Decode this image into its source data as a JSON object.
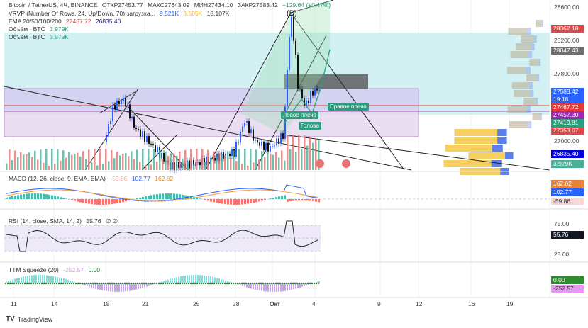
{
  "header": {
    "symbol": "Bitcoin / TetherUS, 4Ч, BINANCE",
    "open": "ОТКР27453.77",
    "high": "МАКС27643.09",
    "low": "МИН27434.10",
    "close": "ЗАКР27583.42",
    "change": "+129.64 (+0.47%)"
  },
  "vrvp": {
    "label": "VRVP (Number Of Rows, 24, Up/Down, 70) загрузка...",
    "up": "9.521K",
    "down": "8.585K",
    "total": "18.107K"
  },
  "ema": {
    "label": "EMA 20/50/100/200",
    "v1": "27467.72",
    "v2": "26835.40"
  },
  "volume": [
    {
      "label": "Объём · BTC",
      "value": "3.979K"
    },
    {
      "label": "Объём · BTC",
      "value": "3.979K"
    }
  ],
  "price_axis": [
    "28600.00",
    "28200.00",
    "27800.00",
    "27000.00"
  ],
  "price_tags": [
    {
      "text": "28362.18",
      "color": "#e04848"
    },
    {
      "text": "28047.43",
      "color": "#707070"
    },
    {
      "text": "27583.42",
      "color": "#2962ff"
    },
    {
      "text": "19:18",
      "color": "#2962ff"
    },
    {
      "text": "27467.72",
      "color": "#e53935"
    },
    {
      "text": "27457.30",
      "color": "#9c27b0"
    },
    {
      "text": "27419.81",
      "color": "#2a9d7c"
    },
    {
      "text": "27353.67",
      "color": "#e04848"
    },
    {
      "text": "26835.40",
      "color": "#0000dd"
    },
    {
      "text": "3.979K",
      "color": "#4caf98"
    }
  ],
  "pattern": {
    "point": "(B)",
    "left": "Левое плечо",
    "right": "Правое плечо",
    "head": "Голова"
  },
  "macd": {
    "label": "MACD (12, 26, close, 9, EMA, EMA)",
    "hist": "-59.86",
    "macd": "102.77",
    "signal": "162.62"
  },
  "rsi": {
    "label": "RSI (14, close, SMA, 14, 2)",
    "value": "55.76",
    "extra": "∅ ∅",
    "axis": [
      "75.00",
      "25.00"
    ]
  },
  "ttm": {
    "label": "TTM Squeeze (20)",
    "value": "-252.57",
    "zero": "0.00"
  },
  "time_axis": [
    "11",
    "14",
    "18",
    "21",
    "25",
    "28",
    "Окт",
    "4",
    "9",
    "12",
    "16",
    "19"
  ],
  "footer": {
    "brand": "TradingView"
  }
}
